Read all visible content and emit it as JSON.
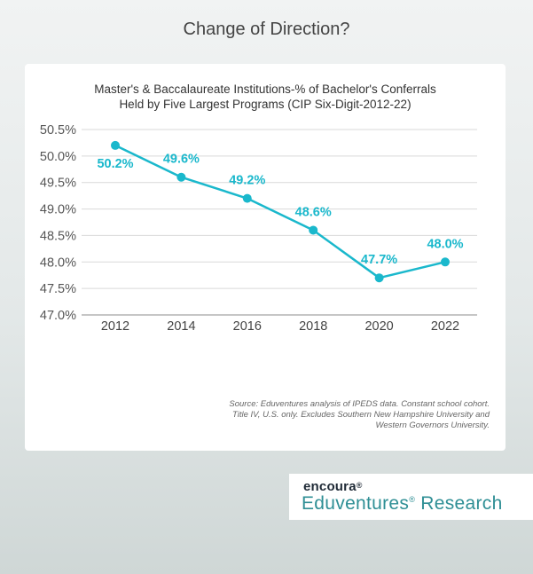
{
  "page_title": "Change of Direction?",
  "chart_data": {
    "type": "line",
    "title_lines": [
      "Master's & Baccalaureate Institutions-% of Bachelor's Conferrals",
      "Held by Five Largest Programs (CIP Six-Digit-2012-22)"
    ],
    "categories": [
      "2012",
      "2014",
      "2016",
      "2018",
      "2020",
      "2022"
    ],
    "values": [
      50.2,
      49.6,
      49.2,
      48.6,
      47.7,
      48.0
    ],
    "data_labels": [
      "50.2%",
      "49.6%",
      "49.2%",
      "48.6%",
      "47.7%",
      "48.0%"
    ],
    "y_ticks": [
      "47.0%",
      "47.5%",
      "48.0%",
      "48.5%",
      "49.0%",
      "49.5%",
      "50.0%",
      "50.5%"
    ],
    "ylim": [
      47.0,
      50.5
    ],
    "grid": true,
    "line_color": "#1ab8cc"
  },
  "source_text": "Source: Eduventures analysis of IPEDS data. Constant school cohort. Title IV, U.S. only. Excludes Southern New Hampshire University and Western Governors University.",
  "logo": {
    "brand": "encoura",
    "brand_mark": "®",
    "name": "Eduventures",
    "name_mark": "®",
    "suffix": " Research"
  }
}
